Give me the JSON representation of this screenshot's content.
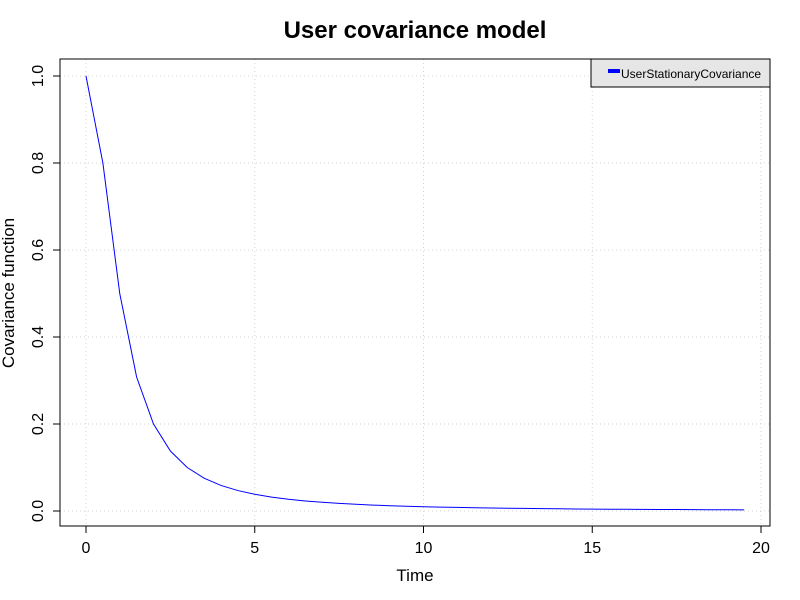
{
  "chart_data": {
    "type": "line",
    "title": "User covariance model",
    "xlabel": "Time",
    "ylabel": "Covariance function",
    "xlim": [
      0,
      20
    ],
    "ylim": [
      0,
      1
    ],
    "xticks": [
      "0",
      "5",
      "10",
      "15",
      "20"
    ],
    "yticks": [
      "0.0",
      "0.2",
      "0.4",
      "0.6",
      "0.8",
      "1.0"
    ],
    "grid": true,
    "legend": {
      "position": "top-right",
      "entries": [
        "UserStationaryCovariance"
      ]
    },
    "series": [
      {
        "name": "UserStationaryCovariance",
        "color": "#0000ff",
        "x": [
          0,
          0.5,
          1,
          1.5,
          2,
          2.5,
          3,
          3.5,
          4,
          4.5,
          5,
          5.5,
          6,
          6.5,
          7,
          7.5,
          8,
          8.5,
          9,
          9.5,
          10,
          10.5,
          11,
          11.5,
          12,
          12.5,
          13,
          13.5,
          14,
          14.5,
          15,
          15.5,
          16,
          16.5,
          17,
          17.5,
          18,
          18.5,
          19,
          19.5
        ],
        "y": [
          1.0,
          0.8,
          0.5,
          0.3077,
          0.2,
          0.1379,
          0.1,
          0.0755,
          0.0588,
          0.047,
          0.0385,
          0.032,
          0.027,
          0.0231,
          0.02,
          0.0175,
          0.0154,
          0.0136,
          0.0122,
          0.0109,
          0.0099,
          0.009,
          0.0082,
          0.0075,
          0.0069,
          0.0064,
          0.0059,
          0.0055,
          0.0051,
          0.0047,
          0.0044,
          0.0041,
          0.0039,
          0.0037,
          0.0035,
          0.0033,
          0.0031,
          0.0029,
          0.0028,
          0.0026
        ]
      }
    ]
  }
}
